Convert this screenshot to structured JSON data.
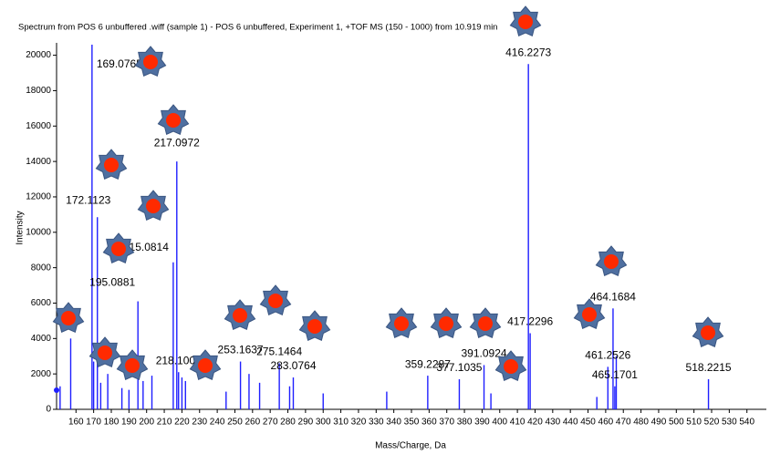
{
  "chart_data": {
    "type": "bar",
    "title": "Spectrum from POS 6 unbuffered .wiff (sample 1) - POS 6 unbuffered, Experiment 1, +TOF MS (150 - 1000) from 10.919 min",
    "x_label": "Mass/Charge, Da",
    "y_label": "Intensity",
    "color": "#1f1fff",
    "xlim": [
      149,
      551
    ],
    "ylim": [
      0,
      20700
    ],
    "xticks": [
      160,
      170,
      180,
      190,
      200,
      210,
      220,
      230,
      240,
      250,
      260,
      270,
      280,
      290,
      300,
      310,
      320,
      330,
      340,
      350,
      360,
      370,
      380,
      390,
      400,
      410,
      420,
      430,
      440,
      450,
      460,
      470,
      480,
      490,
      500,
      510,
      520,
      530,
      540
    ],
    "yticks": [
      0,
      2000,
      4000,
      6000,
      8000,
      10000,
      12000,
      14000,
      16000,
      18000,
      20000
    ],
    "peaks": {
      "x": [
        169.0765,
        172.1123,
        195.0881,
        215.0814,
        217.0972,
        218.1007,
        253.1637,
        275.1464,
        283.0764,
        359.2287,
        377.1035,
        391.0924,
        416.2273,
        417.2296,
        461.2526,
        464.1684,
        465.1701,
        518.2215
      ],
      "values": [
        20600,
        10850,
        6100,
        8300,
        14000,
        2100,
        2700,
        2600,
        1800,
        1900,
        1700,
        2500,
        19500,
        4300,
        2400,
        5700,
        1300,
        1700
      ]
    },
    "minor_peaks": {
      "x": [
        151,
        157,
        170,
        174,
        178,
        186,
        190,
        198,
        203,
        220,
        222,
        245,
        258,
        264,
        281,
        300,
        336,
        395,
        455,
        466
      ],
      "values": [
        1300,
        4000,
        2700,
        1500,
        2000,
        1200,
        1100,
        1600,
        1900,
        1800,
        1600,
        1000,
        2000,
        1500,
        1300,
        900,
        1000,
        900,
        700,
        3000
      ]
    }
  }
}
